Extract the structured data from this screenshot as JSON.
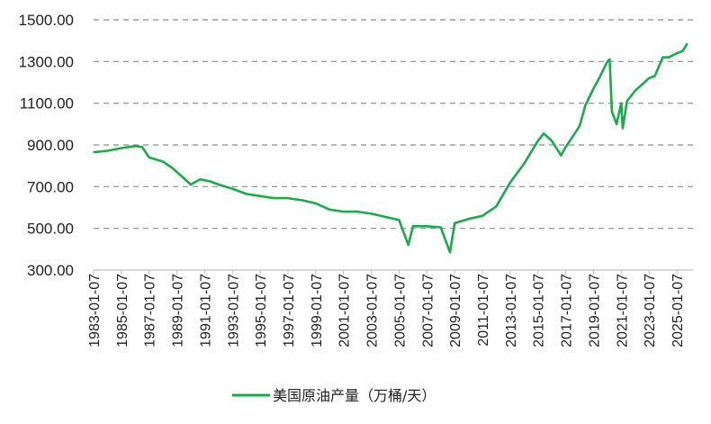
{
  "chart_data": {
    "type": "line",
    "title": "",
    "xlabel": "",
    "ylabel": "",
    "ylim": [
      300,
      1500
    ],
    "yticks": [
      "300.00",
      "500.00",
      "700.00",
      "900.00",
      "1100.00",
      "1300.00",
      "1500.00"
    ],
    "xticks": [
      "1983-01-07",
      "1985-01-07",
      "1987-01-07",
      "1989-01-07",
      "1991-01-07",
      "1993-01-07",
      "1995-01-07",
      "1997-01-07",
      "1999-01-07",
      "2001-01-07",
      "2003-01-07",
      "2005-01-07",
      "2007-01-07",
      "2009-01-07",
      "2011-01-07",
      "2013-01-07",
      "2015-01-07",
      "2017-01-07",
      "2019-01-07",
      "2021-01-07",
      "2023-01-07",
      "2025-01-07"
    ],
    "grid": "horizontal dashed",
    "legend_position": "bottom",
    "colors": {
      "series": "#1aab4b",
      "grid": "#8c8c8c",
      "axis": "#bfbfbf"
    },
    "series": [
      {
        "name": "美国原油产量（万桶/天）",
        "points": [
          [
            "1983-01-07",
            865
          ],
          [
            "1984-01-07",
            872
          ],
          [
            "1985-01-07",
            885
          ],
          [
            "1986-01-07",
            895
          ],
          [
            "1986-07-07",
            890
          ],
          [
            "1987-01-07",
            840
          ],
          [
            "1988-01-07",
            820
          ],
          [
            "1988-09-07",
            790
          ],
          [
            "1989-06-07",
            745
          ],
          [
            "1990-01-07",
            710
          ],
          [
            "1990-09-07",
            735
          ],
          [
            "1991-06-07",
            725
          ],
          [
            "1992-01-07",
            710
          ],
          [
            "1993-01-07",
            690
          ],
          [
            "1994-01-07",
            665
          ],
          [
            "1995-01-07",
            655
          ],
          [
            "1996-01-07",
            645
          ],
          [
            "1997-01-07",
            645
          ],
          [
            "1998-01-07",
            635
          ],
          [
            "1999-01-07",
            620
          ],
          [
            "2000-01-07",
            590
          ],
          [
            "2001-01-07",
            580
          ],
          [
            "2002-01-07",
            580
          ],
          [
            "2003-01-07",
            570
          ],
          [
            "2004-01-07",
            555
          ],
          [
            "2005-01-07",
            540
          ],
          [
            "2005-09-07",
            420
          ],
          [
            "2006-01-07",
            510
          ],
          [
            "2007-01-07",
            510
          ],
          [
            "2008-01-07",
            505
          ],
          [
            "2008-09-07",
            385
          ],
          [
            "2009-01-07",
            525
          ],
          [
            "2010-01-07",
            545
          ],
          [
            "2011-01-07",
            560
          ],
          [
            "2012-01-07",
            605
          ],
          [
            "2013-01-07",
            720
          ],
          [
            "2014-01-07",
            810
          ],
          [
            "2015-01-07",
            920
          ],
          [
            "2015-06-07",
            955
          ],
          [
            "2016-01-07",
            920
          ],
          [
            "2016-09-07",
            850
          ],
          [
            "2017-01-07",
            890
          ],
          [
            "2018-01-07",
            990
          ],
          [
            "2018-06-07",
            1090
          ],
          [
            "2019-01-07",
            1170
          ],
          [
            "2019-06-07",
            1220
          ],
          [
            "2020-01-07",
            1300
          ],
          [
            "2020-03-07",
            1310
          ],
          [
            "2020-05-07",
            1060
          ],
          [
            "2020-09-07",
            1000
          ],
          [
            "2021-01-07",
            1100
          ],
          [
            "2021-02-15",
            980
          ],
          [
            "2021-06-07",
            1110
          ],
          [
            "2022-01-07",
            1160
          ],
          [
            "2023-01-07",
            1220
          ],
          [
            "2023-06-07",
            1230
          ],
          [
            "2024-01-07",
            1320
          ],
          [
            "2024-06-07",
            1320
          ],
          [
            "2025-01-07",
            1340
          ],
          [
            "2025-06-07",
            1350
          ],
          [
            "2025-10-07",
            1385
          ]
        ]
      }
    ]
  }
}
